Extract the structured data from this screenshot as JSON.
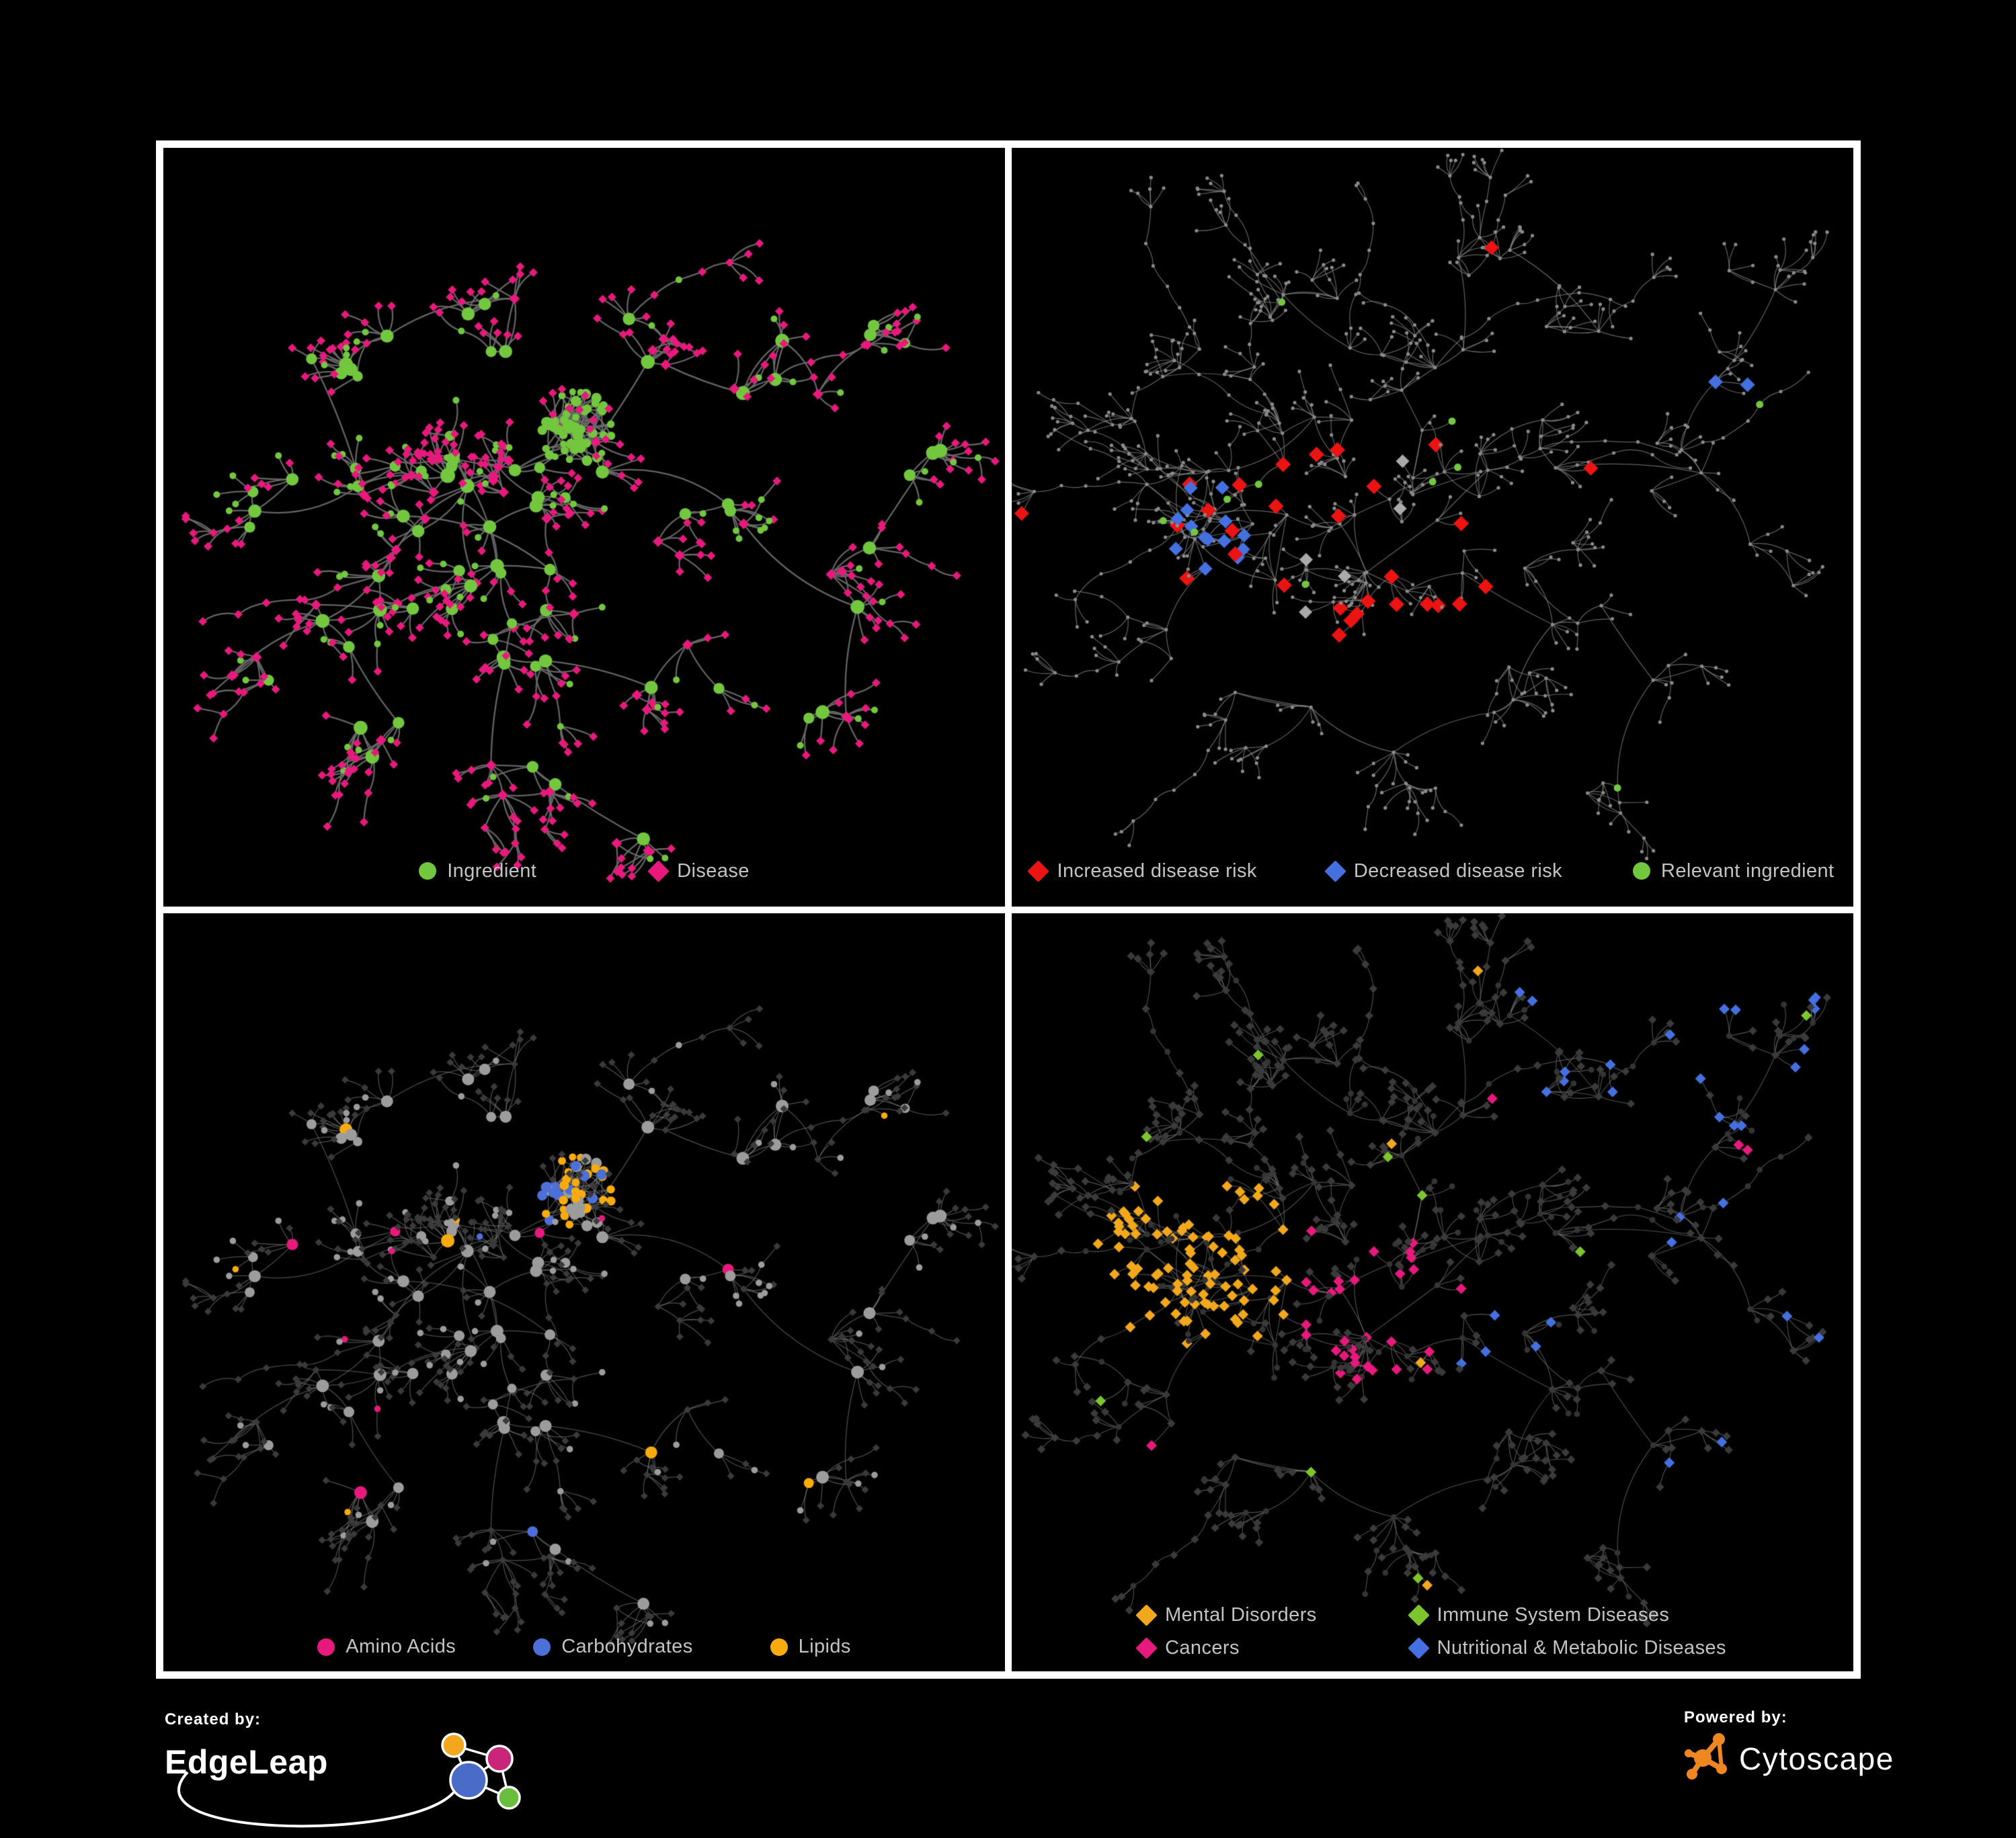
{
  "page": {
    "background": "#000000",
    "panel_background": "#000000",
    "panel_border": "#FFFFFF",
    "legend_text_color": "#C3C3C3"
  },
  "panels": [
    {
      "id": "ingredient-disease",
      "legend": [
        {
          "label": "Ingredient",
          "shape": "circle",
          "color": "#72C73E"
        },
        {
          "label": "Disease",
          "shape": "diamond",
          "color": "#E8197D"
        }
      ]
    },
    {
      "id": "disease-risk",
      "legend": [
        {
          "label": "Increased disease risk",
          "shape": "diamond",
          "color": "#EC1313"
        },
        {
          "label": "Decreased disease risk",
          "shape": "diamond",
          "color": "#4470E0"
        },
        {
          "label": "Relevant ingredient",
          "shape": "circle",
          "color": "#72C73E"
        }
      ]
    },
    {
      "id": "macronutrients",
      "legend": [
        {
          "label": "Amino Acids",
          "shape": "circle",
          "color": "#E8197D"
        },
        {
          "label": "Carbohydrates",
          "shape": "circle",
          "color": "#4C6FD8"
        },
        {
          "label": "Lipids",
          "shape": "circle",
          "color": "#F7AB0F"
        }
      ]
    },
    {
      "id": "disease-categories",
      "legend": [
        {
          "label": "Mental Disorders",
          "shape": "diamond",
          "color": "#F2A81C"
        },
        {
          "label": "Immune System Diseases",
          "shape": "diamond",
          "color": "#7CC52F"
        },
        {
          "label": "Cancers",
          "shape": "diamond",
          "color": "#E8197D"
        },
        {
          "label": "Nutritional & Metabolic Diseases",
          "shape": "diamond",
          "color": "#4470E0"
        }
      ]
    }
  ],
  "network": {
    "node_colors": {
      "ingredient_green": "#72C73E",
      "disease_pink": "#E8197D",
      "risk_red": "#EC1313",
      "risk_blue": "#4470E0",
      "risk_gray": "#A9A9A9",
      "tiny_gray": "#8A8A8A",
      "base_gray": "#9C9C9C",
      "dim_diamond": "#3A3A3A",
      "dim_circle": "#343434",
      "amino_pink": "#E8197D",
      "carb_blue": "#4C6FD8",
      "lipid_orange": "#F7AB0F",
      "mental_orange": "#F2A81C",
      "immune_green": "#7CC52F",
      "cancer_pink": "#E8197D",
      "nutritional_blue": "#4470E0"
    },
    "edge_colors": {
      "panel1": "#696969",
      "panel2": "#8B8B8B",
      "panel3": "#808080",
      "panel4": "#747474"
    }
  },
  "footer": {
    "created_by": {
      "label": "Created by:",
      "brand": "EdgeLeap"
    },
    "powered_by": {
      "label": "Powered by:",
      "brand": "Cytoscape",
      "accent": "#EE8722"
    },
    "logo_colors": {
      "edgeleap_blue": "#4B6BC8",
      "edgeleap_orange": "#F2A71F",
      "edgeleap_magenta": "#C92579",
      "edgeleap_green": "#69BE3B",
      "swoosh_white": "#FFFFFF"
    }
  }
}
